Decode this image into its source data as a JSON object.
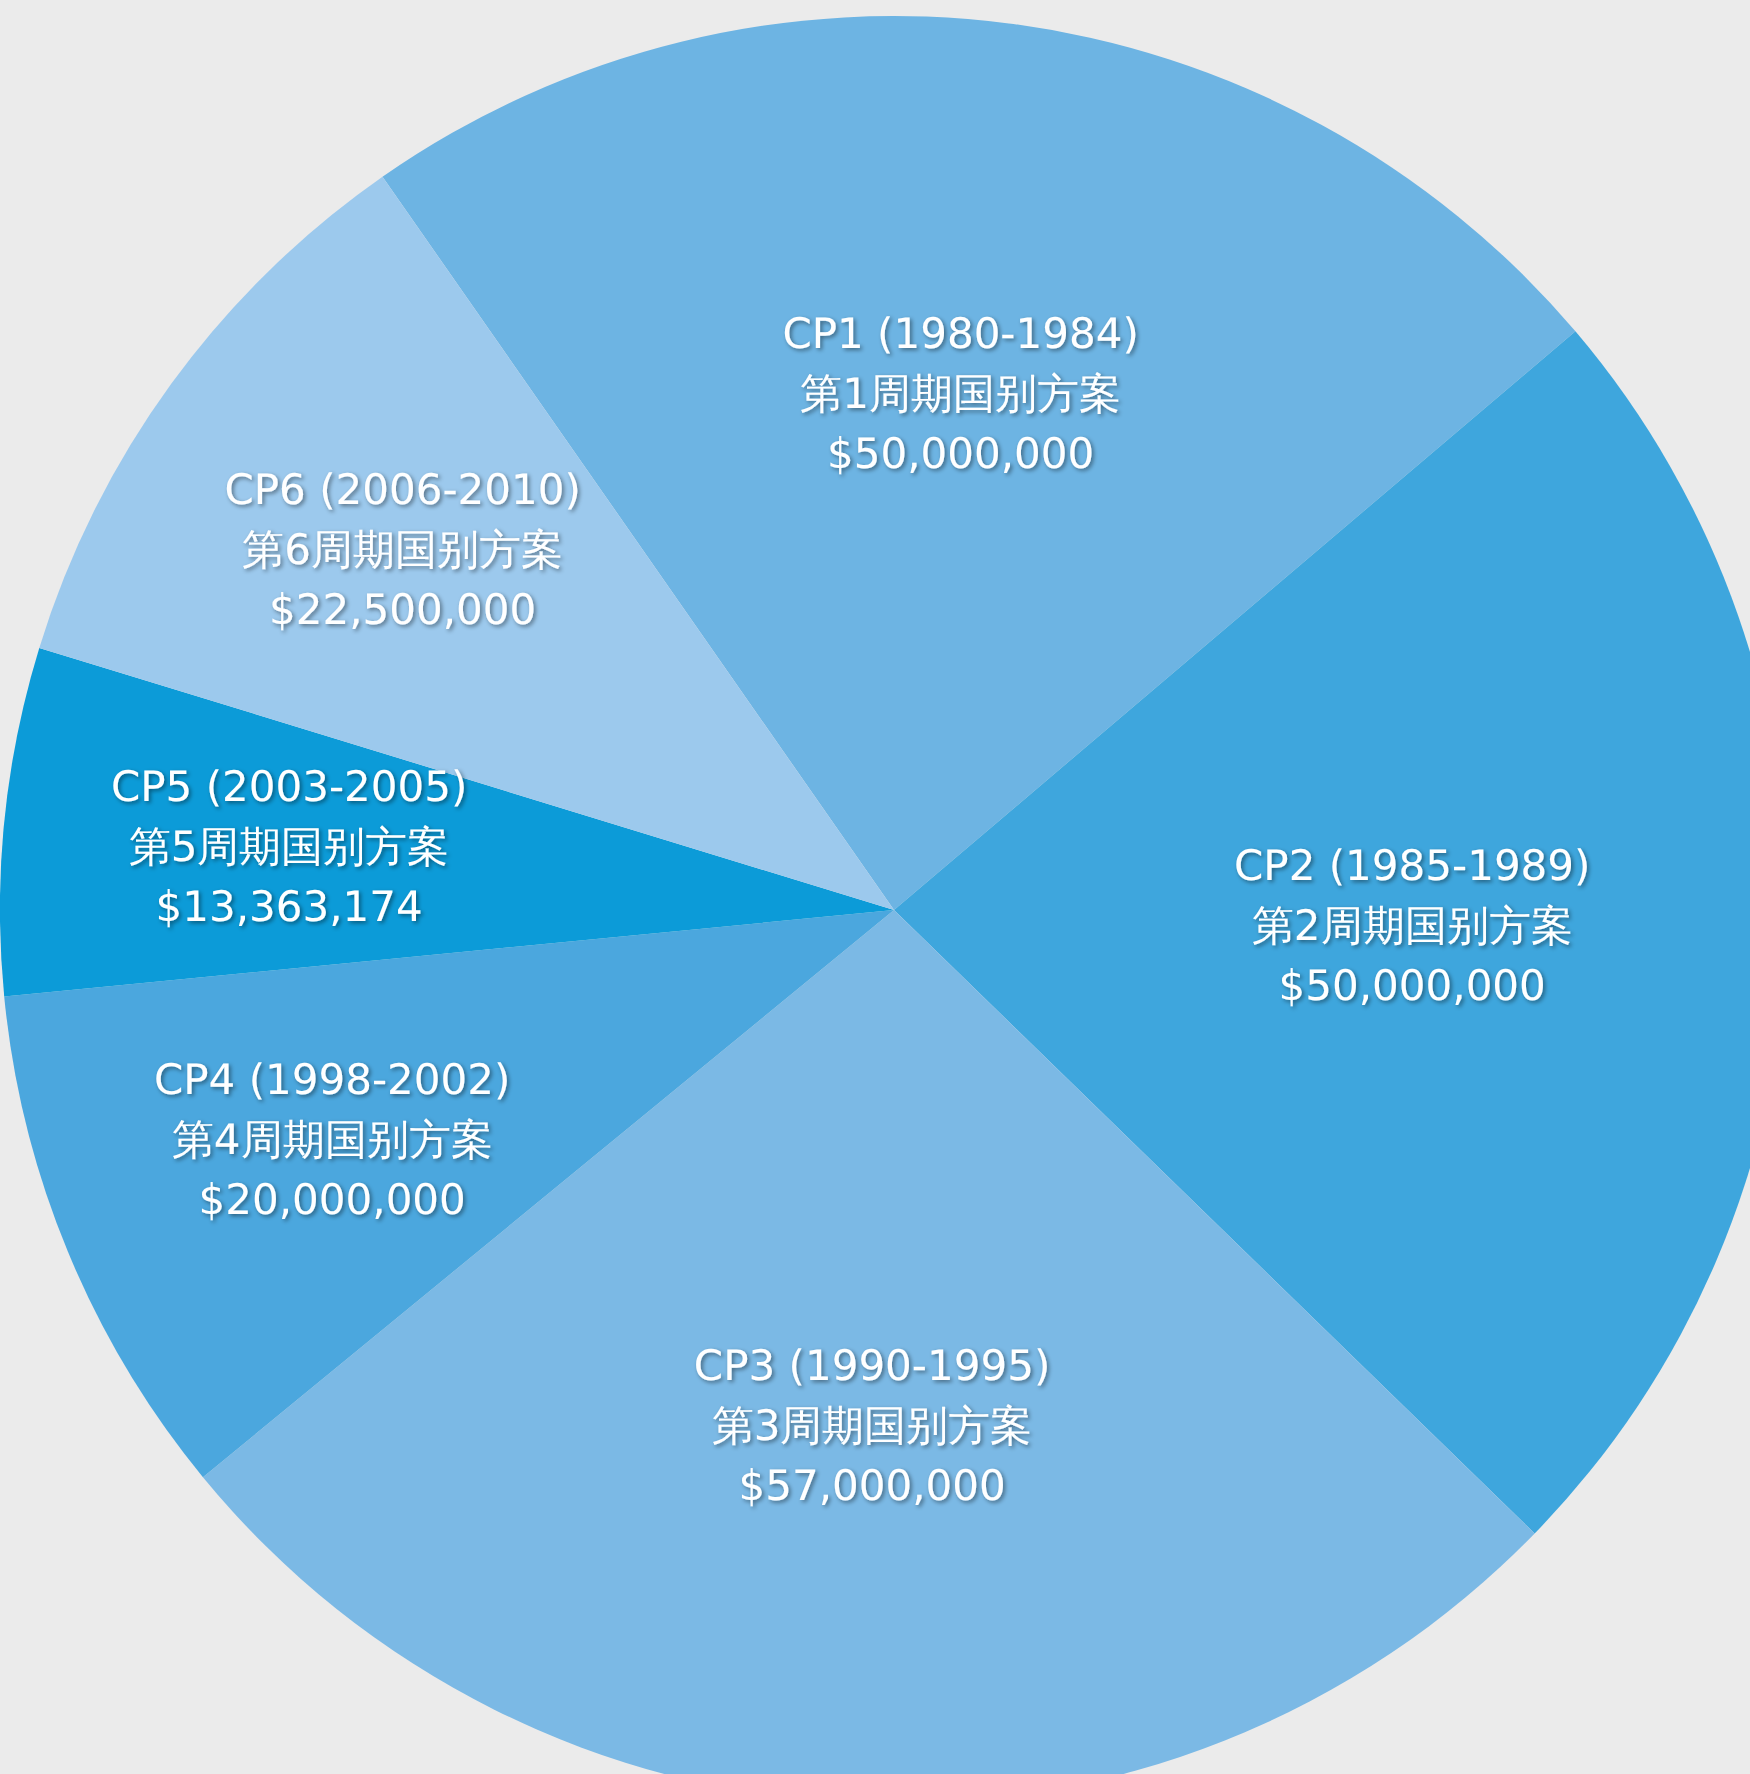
{
  "chart_data": {
    "type": "pie",
    "categories": [
      "CP1 (1980-1984)\n第1周期国别方案",
      "CP2 (1985-1989)\n第2周期国别方案",
      "CP3 (1990-1995)\n第3周期国别方案",
      "CP4 (1998-2002)\n第4周期国别方案",
      "CP5 (2003-2005)\n第5周期国别方案",
      "CP6 (2006-2010)\n第6周期国别方案"
    ],
    "values": [
      50000000,
      50000000,
      57000000,
      20000000,
      13363174,
      22500000
    ],
    "value_labels": [
      "$50,000,000",
      "$50,000,000",
      "$57,000,000",
      "$20,000,000",
      "$13,363,174",
      "$22,500,000"
    ],
    "colors": [
      "#6db4e3",
      "#3ea6dd",
      "#7bb9e5",
      "#4ba7de",
      "#0c9bd8",
      "#9cc9ed"
    ]
  }
}
